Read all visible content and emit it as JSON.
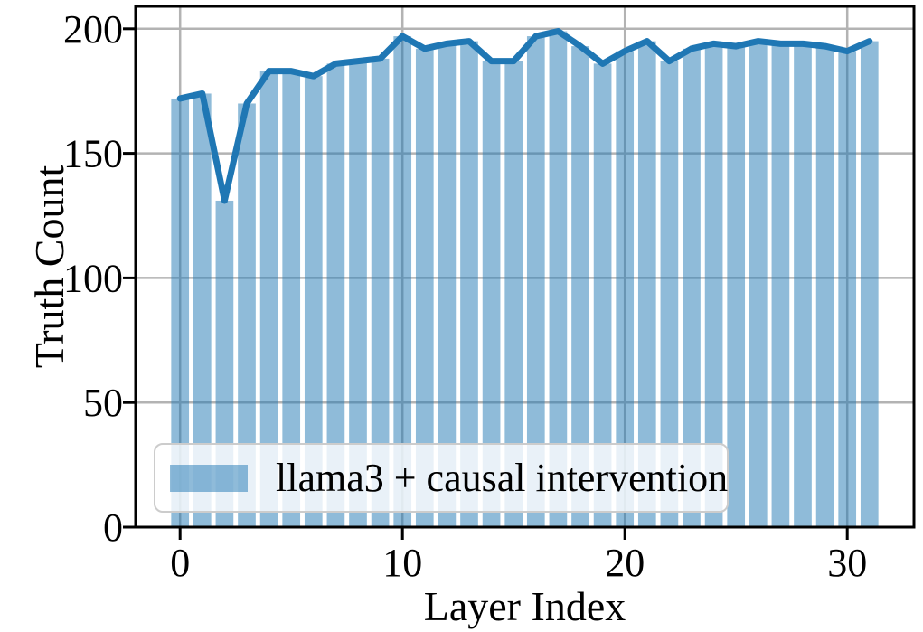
{
  "figure": {
    "xlabel": "Layer Index",
    "ylabel": "Truth Count",
    "legend_label": "llama3 + causal intervention"
  },
  "chart_data": {
    "type": "bar",
    "title": "",
    "xlabel": "Layer Index",
    "ylabel": "Truth Count",
    "categories": [
      0,
      1,
      2,
      3,
      4,
      5,
      6,
      7,
      8,
      9,
      10,
      11,
      12,
      13,
      14,
      15,
      16,
      17,
      18,
      19,
      20,
      21,
      22,
      23,
      24,
      25,
      26,
      27,
      28,
      29,
      30,
      31
    ],
    "series": [
      {
        "name": "llama3 + causal intervention",
        "type": "bar",
        "values": [
          172,
          174,
          131,
          170,
          183,
          183,
          181,
          186,
          187,
          188,
          197,
          192,
          194,
          195,
          187,
          187,
          197,
          199,
          193,
          186,
          191,
          195,
          187,
          192,
          194,
          193,
          195,
          194,
          194,
          193,
          191,
          195
        ]
      },
      {
        "name": "llama3 + causal intervention (trend line)",
        "type": "line",
        "values": [
          172,
          174,
          131,
          170,
          183,
          183,
          181,
          186,
          187,
          188,
          197,
          192,
          194,
          195,
          187,
          187,
          197,
          199,
          193,
          186,
          191,
          195,
          187,
          192,
          194,
          193,
          195,
          194,
          194,
          193,
          191,
          195
        ]
      }
    ],
    "legend": {
      "entries": [
        "llama3 + causal intervention"
      ],
      "position": "lower left"
    },
    "xlim": [
      -2,
      33
    ],
    "ylim": [
      0,
      209
    ],
    "xticks": [
      0,
      10,
      20,
      30
    ],
    "yticks": [
      0,
      50,
      100,
      150,
      200
    ],
    "grid": true,
    "bar_width": 0.8,
    "colors": {
      "bar_fill": "#8FBBD9",
      "bar_fill_rgba": "rgba(31,119,180,0.5)",
      "line": "#1F77B4",
      "grid": "#B3B3B3",
      "spine": "#000000",
      "tick_label": "#000000",
      "legend_bg": "rgba(255,255,255,0.8)",
      "legend_border": "#CCCCCC"
    }
  }
}
